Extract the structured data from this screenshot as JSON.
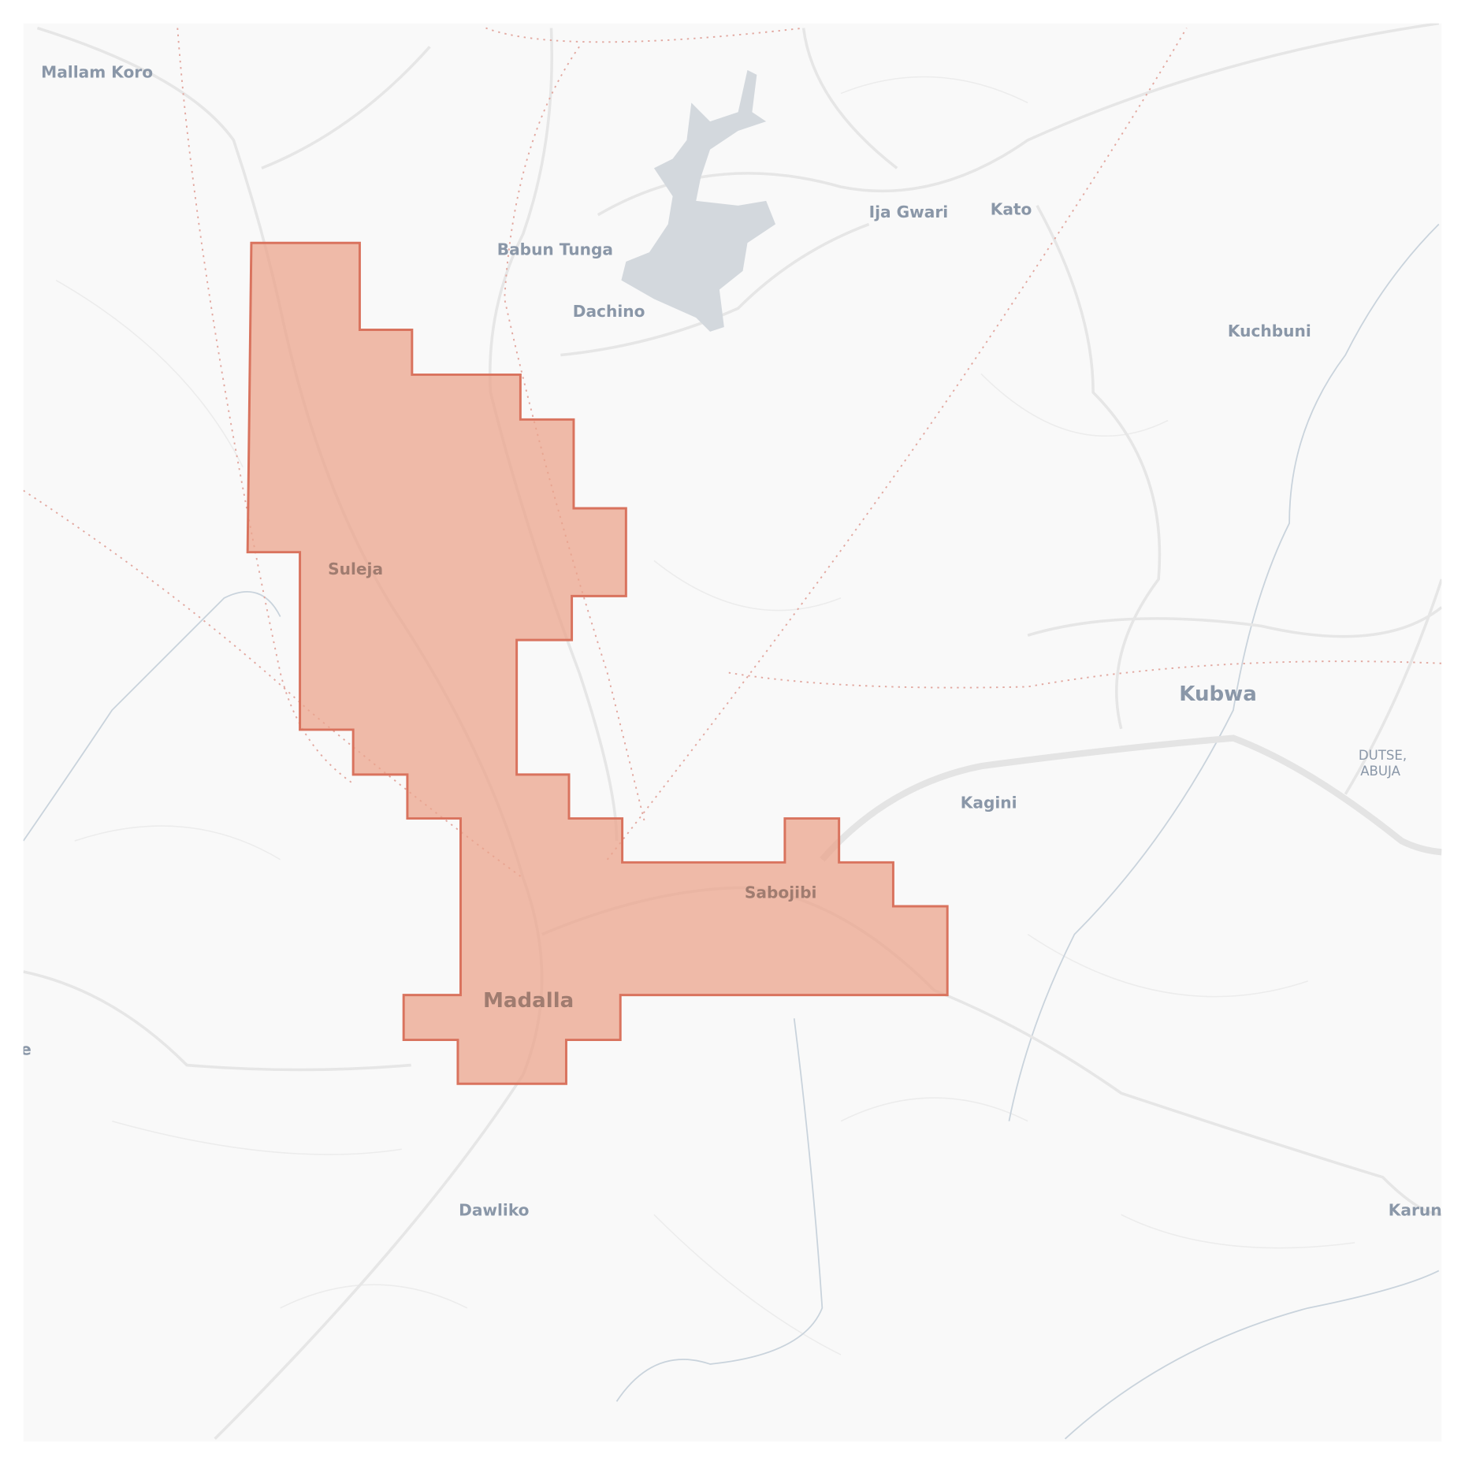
{
  "map": {
    "labels": [
      {
        "text": "Mallam Koro",
        "style": "normal"
      },
      {
        "text": "Babun Tunga",
        "style": "normal"
      },
      {
        "text": "Dachino",
        "style": "normal"
      },
      {
        "text": "Ija Gwari",
        "style": "normal"
      },
      {
        "text": "Kato",
        "style": "normal"
      },
      {
        "text": "Kuchbuni",
        "style": "normal"
      },
      {
        "text": "Suleja",
        "style": "inside"
      },
      {
        "text": "Kubwa",
        "style": "big"
      },
      {
        "text": "DUTSE,",
        "style": "normal"
      },
      {
        "text": "ABUJA",
        "style": "normal"
      },
      {
        "text": "Kagini",
        "style": "normal"
      },
      {
        "text": "Sabojibi",
        "style": "inside"
      },
      {
        "text": "Madalla",
        "style": "big-inside"
      },
      {
        "text": "Dawliko",
        "style": "normal"
      },
      {
        "text": "Karun",
        "style": "normal"
      },
      {
        "text": "e",
        "style": "normal"
      }
    ],
    "colors": {
      "background": "#f9f9f9",
      "highlight_fill": "#eba48c",
      "highlight_stroke": "#d9735e",
      "water": "#d3d8dd",
      "label": "#8a97a8"
    },
    "highlight_region_opacity": 0.75
  }
}
